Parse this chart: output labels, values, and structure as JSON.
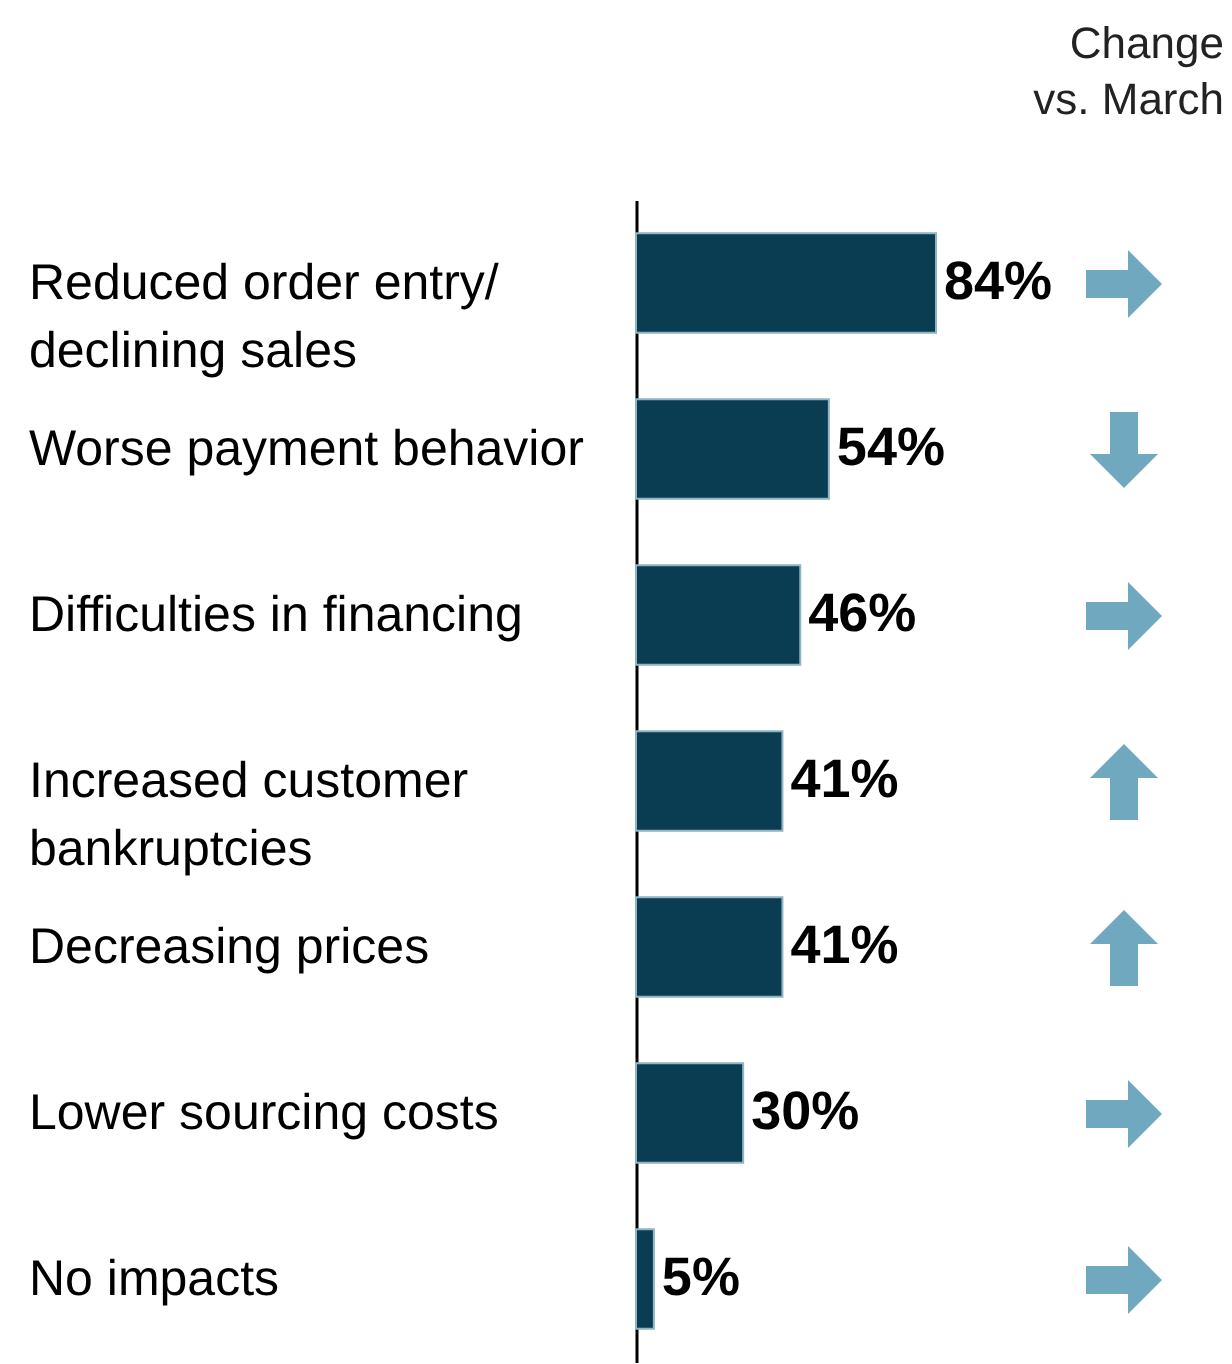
{
  "chart_data": {
    "type": "bar",
    "orientation": "horizontal",
    "categories": [
      "Reduced order entry/ declining sales",
      "Worse payment behavior",
      "Difficulties in financing",
      "Increased customer bankruptcies",
      "Decreasing prices",
      "Lower sourcing costs",
      "No impacts"
    ],
    "values": [
      84,
      54,
      46,
      41,
      41,
      30,
      5
    ],
    "value_labels": [
      "84%",
      "54%",
      "46%",
      "41%",
      "41%",
      "30%",
      "5%"
    ],
    "color": "#0b3d52",
    "annotations": [
      "Change vs. March"
    ]
  }
}
